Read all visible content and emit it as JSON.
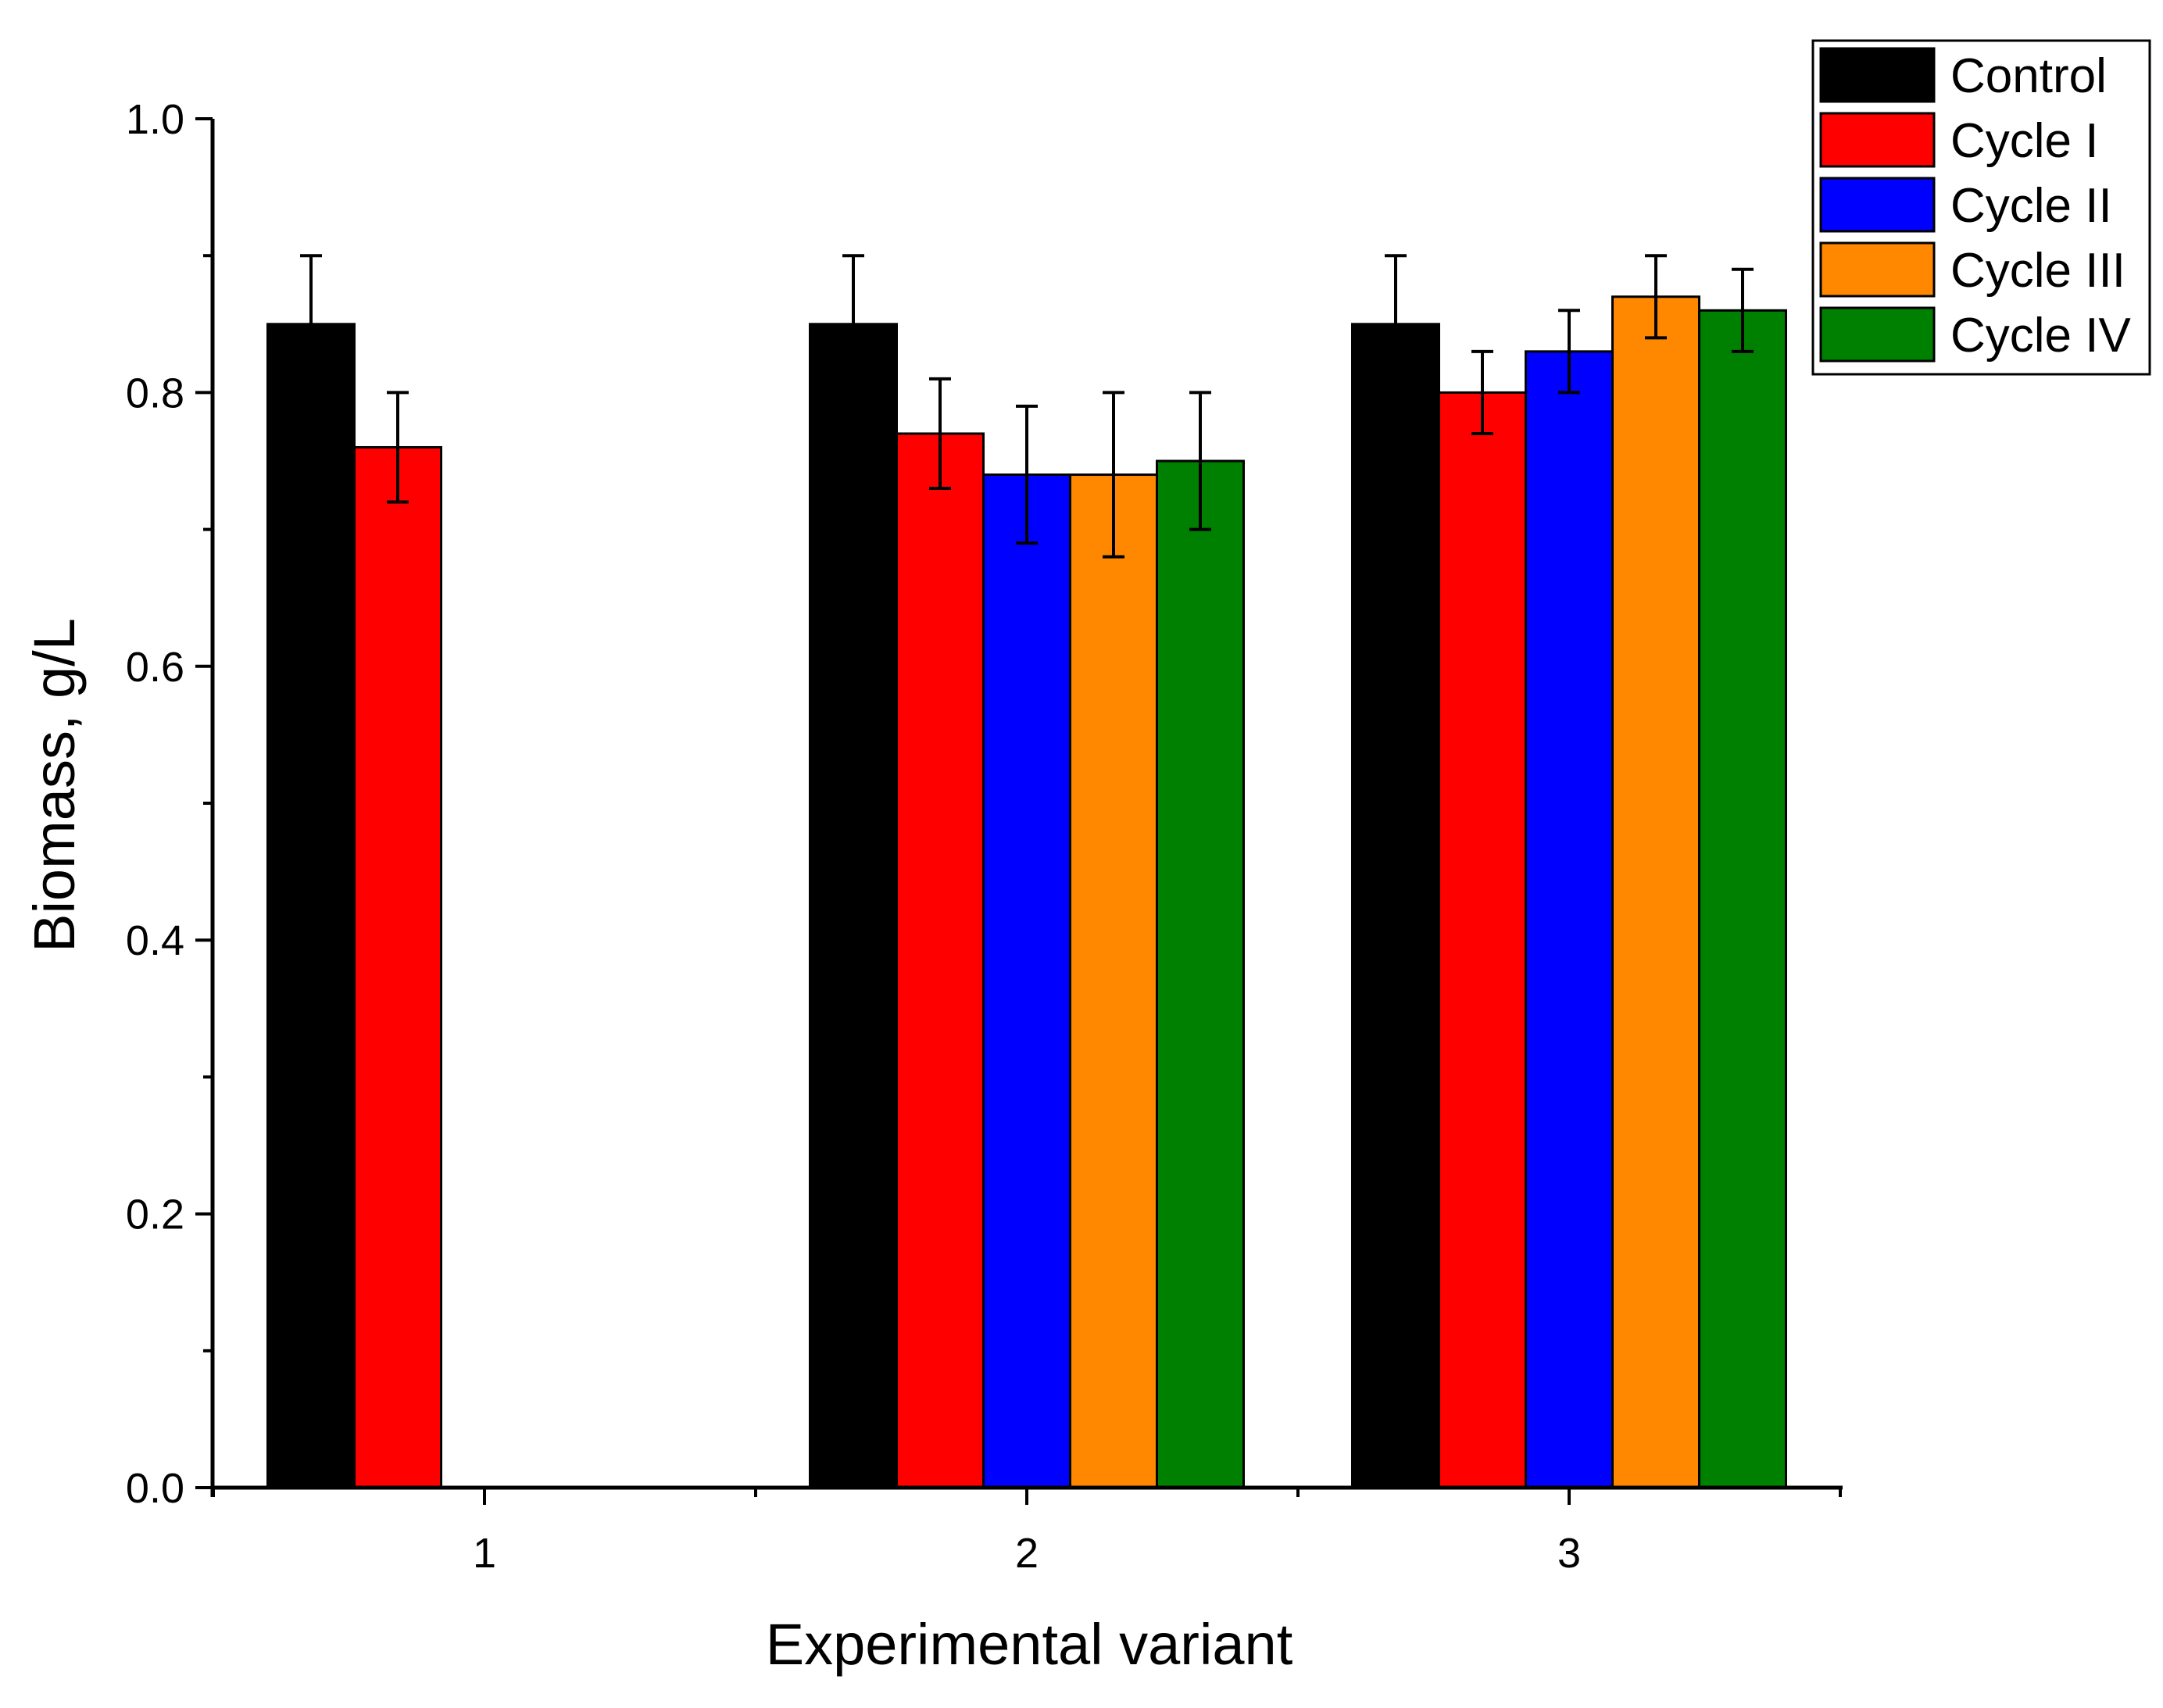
{
  "chart_data": {
    "type": "bar",
    "title": "",
    "xlabel": "Experimental variant",
    "ylabel": "Biomass, g/L",
    "categories": [
      "1",
      "2",
      "3"
    ],
    "ylim": [
      0,
      1.0
    ],
    "yticks": [
      "0.0",
      "0.2",
      "0.4",
      "0.6",
      "0.8",
      "1.0"
    ],
    "grid": false,
    "legend_position": "top-right",
    "series": [
      {
        "name": "Control",
        "color": "#000000",
        "values": [
          0.85,
          0.85,
          0.85
        ],
        "errors": [
          0.05,
          0.05,
          0.05
        ]
      },
      {
        "name": "Cycle I",
        "color": "#ff0000",
        "values": [
          0.76,
          0.77,
          0.8
        ],
        "errors": [
          0.04,
          0.04,
          0.03
        ]
      },
      {
        "name": "Cycle II",
        "color": "#0000ff",
        "values": [
          null,
          0.74,
          0.83
        ],
        "errors": [
          null,
          0.05,
          0.03
        ]
      },
      {
        "name": "Cycle III",
        "color": "#ff8800",
        "values": [
          null,
          0.74,
          0.87
        ],
        "errors": [
          null,
          0.06,
          0.03
        ]
      },
      {
        "name": "Cycle IV",
        "color": "#008000",
        "values": [
          null,
          0.75,
          0.86
        ],
        "errors": [
          null,
          0.05,
          0.03
        ]
      }
    ]
  }
}
